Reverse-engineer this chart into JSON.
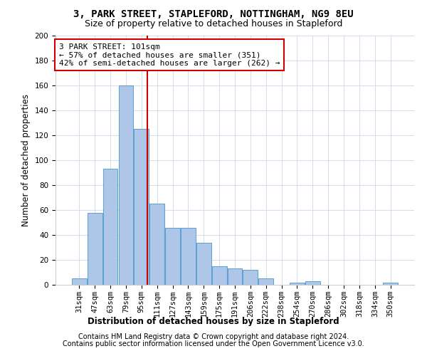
{
  "title1": "3, PARK STREET, STAPLEFORD, NOTTINGHAM, NG9 8EU",
  "title2": "Size of property relative to detached houses in Stapleford",
  "xlabel": "Distribution of detached houses by size in Stapleford",
  "ylabel": "Number of detached properties",
  "footer1": "Contains HM Land Registry data © Crown copyright and database right 2024.",
  "footer2": "Contains public sector information licensed under the Open Government Licence v3.0.",
  "categories": [
    "31sqm",
    "47sqm",
    "63sqm",
    "79sqm",
    "95sqm",
    "111sqm",
    "127sqm",
    "143sqm",
    "159sqm",
    "175sqm",
    "191sqm",
    "206sqm",
    "222sqm",
    "238sqm",
    "254sqm",
    "270sqm",
    "286sqm",
    "302sqm",
    "318sqm",
    "334sqm",
    "350sqm"
  ],
  "values": [
    5,
    58,
    93,
    160,
    125,
    65,
    46,
    46,
    34,
    15,
    13,
    12,
    5,
    0,
    2,
    3,
    0,
    0,
    0,
    0,
    2
  ],
  "bar_color": "#aec6e8",
  "bar_edge_color": "#5a9fd4",
  "highlight_label": "3 PARK STREET: 101sqm",
  "pct_smaller": "57% of detached houses are smaller (351)",
  "pct_larger": "42% of semi-detached houses are larger (262)",
  "red_line_color": "#cc0000",
  "annotation_box_edge": "#cc0000",
  "ylim": [
    0,
    200
  ],
  "yticks": [
    0,
    20,
    40,
    60,
    80,
    100,
    120,
    140,
    160,
    180,
    200
  ],
  "title1_fontsize": 10,
  "title2_fontsize": 9,
  "axis_label_fontsize": 8.5,
  "tick_fontsize": 7.5,
  "annotation_fontsize": 8,
  "footer_fontsize": 7,
  "xlabel_fontsize": 8.5,
  "background_color": "#ffffff",
  "grid_color": "#d0d8e8"
}
